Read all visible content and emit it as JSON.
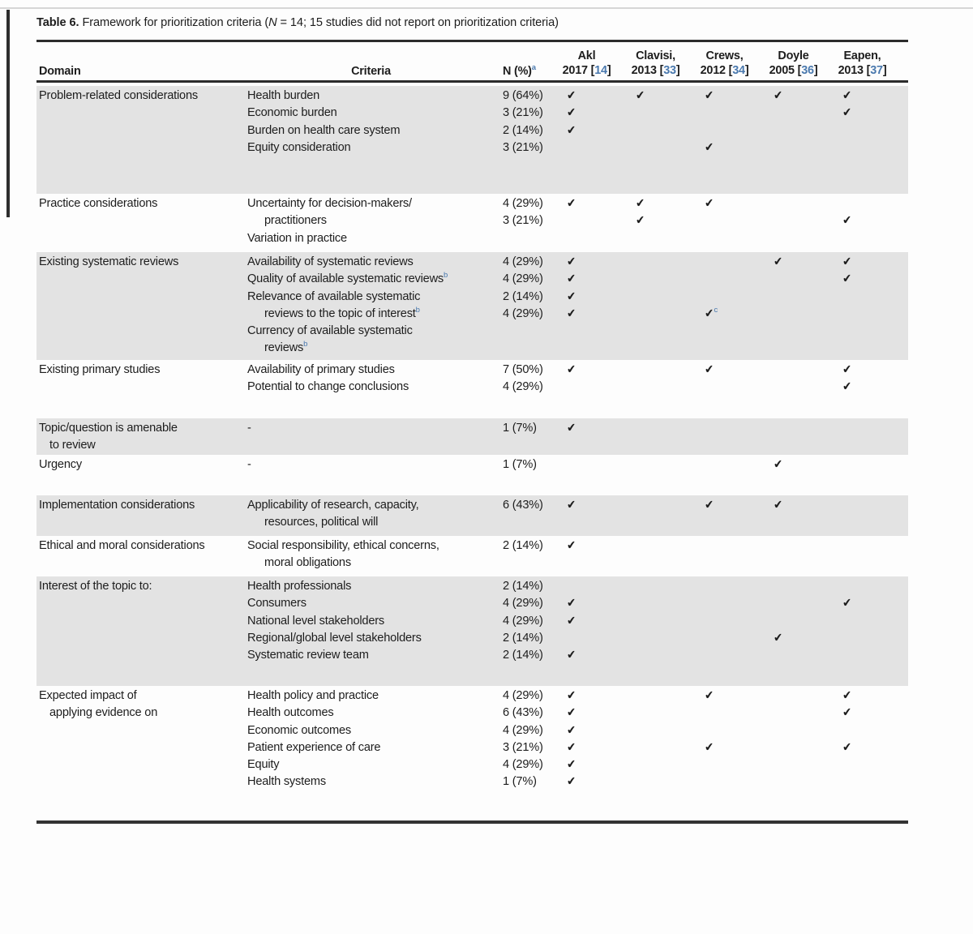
{
  "caption": {
    "label": "Table 6.",
    "text_pre": "Framework for prioritization criteria (",
    "n_italic": "N",
    "text_post": " = 14; 15 studies did not report on prioritization criteria)"
  },
  "header": {
    "domain": "Domain",
    "criteria": "Criteria",
    "n_label": "N (%)",
    "n_sup": "a",
    "studies": [
      {
        "name": "Akl",
        "year_pre": "2017 [",
        "ref": "14",
        "year_post": "]"
      },
      {
        "name": "Clavisi,",
        "year_pre": "2013 [",
        "ref": "33",
        "year_post": "]"
      },
      {
        "name": "Crews,",
        "year_pre": "2012 [",
        "ref": "34",
        "year_post": "]"
      },
      {
        "name": "Doyle",
        "year_pre": "2005 [",
        "ref": "36",
        "year_post": "]"
      },
      {
        "name": "Eapen,",
        "year_pre": "2013 [",
        "ref": "37",
        "year_post": "]"
      }
    ]
  },
  "icons": {
    "check_glyph": "✔"
  },
  "colors": {
    "accent_blue": "#4a79ae",
    "band_gray": "#e3e3e3"
  },
  "groups": [
    {
      "shaded": true,
      "lines": [
        {
          "domain": "Problem-related considerations",
          "criteria": "Health burden",
          "n": "9 (64%)",
          "checks": [
            1,
            1,
            1,
            1,
            1
          ]
        },
        {
          "criteria": "Economic burden",
          "n": "3 (21%)",
          "checks": [
            1,
            0,
            0,
            0,
            1
          ]
        },
        {
          "criteria": "Burden on health care system",
          "n": "2 (14%)",
          "checks": [
            1,
            0,
            0,
            0,
            0
          ]
        },
        {
          "criteria": "Equity consideration",
          "n": "3 (21%)",
          "checks": [
            0,
            0,
            1,
            0,
            0
          ]
        }
      ]
    },
    {
      "shaded": false,
      "lines": [
        {
          "domain": "Practice considerations",
          "criteria": "Uncertainty for decision-makers/",
          "n": "4 (29%)",
          "checks": [
            1,
            1,
            1,
            0,
            0
          ]
        },
        {
          "criteria": "practitioners",
          "criteria_indent": true,
          "n": "3 (21%)",
          "checks": [
            0,
            1,
            0,
            0,
            1
          ]
        },
        {
          "criteria": "Variation in practice",
          "checks": [
            0,
            0,
            0,
            0,
            0
          ]
        }
      ]
    },
    {
      "shaded": true,
      "lines": [
        {
          "domain": "Existing systematic reviews",
          "criteria": "Availability of systematic reviews",
          "n": "4 (29%)",
          "checks": [
            1,
            0,
            0,
            1,
            1
          ]
        },
        {
          "criteria": "Quality of available systematic reviews",
          "criteria_sup": "b",
          "n": "4 (29%)",
          "checks": [
            1,
            0,
            0,
            0,
            1
          ]
        },
        {
          "criteria": "Relevance of available systematic",
          "n": "2 (14%)",
          "checks": [
            1,
            0,
            0,
            0,
            0
          ]
        },
        {
          "criteria": "reviews to the topic of interest",
          "criteria_sup": "b",
          "criteria_indent": true,
          "n": "4 (29%)",
          "checks": [
            1,
            0,
            "c",
            0,
            0
          ]
        },
        {
          "criteria": "Currency of available systematic",
          "checks": [
            0,
            0,
            0,
            0,
            0
          ]
        },
        {
          "criteria": "reviews",
          "criteria_sup": "b",
          "criteria_indent": true,
          "checks": [
            0,
            0,
            0,
            0,
            0
          ]
        }
      ]
    },
    {
      "shaded": false,
      "lines": [
        {
          "domain": "Existing primary studies",
          "criteria": "Availability of primary studies",
          "n": "7 (50%)",
          "checks": [
            1,
            0,
            1,
            0,
            1
          ]
        },
        {
          "criteria": "Potential to change conclusions",
          "n": "4 (29%)",
          "checks": [
            0,
            0,
            0,
            0,
            1
          ]
        }
      ]
    },
    {
      "shaded": true,
      "lines": [
        {
          "domain": "Topic/question is amenable",
          "criteria": "-",
          "n": "1 (7%)",
          "checks": [
            1,
            0,
            0,
            0,
            0
          ]
        },
        {
          "domain": "to review",
          "domain_indent": true
        }
      ]
    },
    {
      "shaded": false,
      "lines": [
        {
          "domain": "Urgency",
          "criteria": "-",
          "n": "1 (7%)",
          "checks": [
            0,
            0,
            0,
            1,
            0
          ]
        }
      ]
    },
    {
      "shaded": true,
      "lines": [
        {
          "domain": "Implementation considerations",
          "criteria": "Applicability of research, capacity,",
          "n": "6 (43%)",
          "checks": [
            1,
            0,
            1,
            1,
            0
          ]
        },
        {
          "criteria": "resources, political will",
          "criteria_indent": true
        }
      ]
    },
    {
      "shaded": false,
      "lines": [
        {
          "domain": "Ethical and moral considerations",
          "criteria": "Social responsibility, ethical concerns,",
          "n": "2 (14%)",
          "checks": [
            1,
            0,
            0,
            0,
            0
          ]
        },
        {
          "criteria": "moral obligations",
          "criteria_indent": true
        }
      ]
    },
    {
      "shaded": true,
      "lines": [
        {
          "domain": "Interest of the topic to:",
          "criteria": "Health professionals",
          "n": "2 (14%)",
          "checks": [
            0,
            0,
            0,
            0,
            0
          ]
        },
        {
          "criteria": "Consumers",
          "n": "4 (29%)",
          "checks": [
            1,
            0,
            0,
            0,
            1
          ]
        },
        {
          "criteria": "National level stakeholders",
          "n": "4 (29%)",
          "checks": [
            1,
            0,
            0,
            0,
            0
          ]
        },
        {
          "criteria": "Regional/global level stakeholders",
          "n": "2 (14%)",
          "checks": [
            0,
            0,
            0,
            1,
            0
          ]
        },
        {
          "criteria": "Systematic review team",
          "n": "2 (14%)",
          "checks": [
            1,
            0,
            0,
            0,
            0
          ]
        }
      ]
    },
    {
      "shaded": false,
      "lines": [
        {
          "domain": "Expected impact of",
          "criteria": "Health policy and practice",
          "n": "4 (29%)",
          "checks": [
            1,
            0,
            1,
            0,
            1
          ]
        },
        {
          "domain": "applying evidence on",
          "domain_indent": true,
          "criteria": "Health outcomes",
          "n": "6 (43%)",
          "checks": [
            1,
            0,
            0,
            0,
            1
          ]
        },
        {
          "criteria": "Economic outcomes",
          "n": "4 (29%)",
          "checks": [
            1,
            0,
            0,
            0,
            0
          ]
        },
        {
          "criteria": "Patient experience of care",
          "n": "3 (21%)",
          "checks": [
            1,
            0,
            1,
            0,
            1
          ]
        },
        {
          "criteria": "Equity",
          "n": "4 (29%)",
          "checks": [
            1,
            0,
            0,
            0,
            0
          ]
        },
        {
          "criteria": "Health systems",
          "n": "1 (7%)",
          "checks": [
            1,
            0,
            0,
            0,
            0
          ]
        }
      ]
    }
  ]
}
